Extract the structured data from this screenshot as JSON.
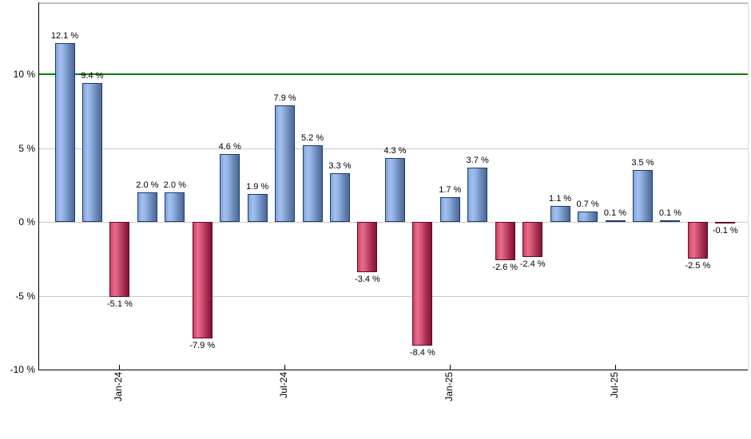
{
  "chart_data": {
    "type": "bar",
    "title": "",
    "unit": "%",
    "values": [
      12.1,
      9.4,
      -5.1,
      2.0,
      2.0,
      -7.9,
      4.6,
      1.9,
      7.9,
      5.2,
      3.3,
      -3.4,
      4.3,
      -8.4,
      1.7,
      3.7,
      -2.6,
      -2.4,
      1.1,
      0.7,
      0.1,
      3.5,
      0.1,
      -2.5,
      -0.1
    ],
    "point_labels": [
      "12.1 %",
      "9.4 %",
      "-5.1 %",
      "2.0 %",
      "2.0 %",
      "-7.9 %",
      "4.6 %",
      "1.9 %",
      "7.9 %",
      "5.2 %",
      "3.3 %",
      "-3.4 %",
      "4.3 %",
      "-8.4 %",
      "1.7 %",
      "3.7 %",
      "-2.6 %",
      "-2.4 %",
      "1.1 %",
      "0.7 %",
      "0.1 %",
      "3.5 %",
      "0.1 %",
      "-2.5 %",
      "-0.1 %"
    ],
    "x_ticks": [
      {
        "label": "Jan-24",
        "bar_index": 2
      },
      {
        "label": "Jul-24",
        "bar_index": 8
      },
      {
        "label": "Jan-25",
        "bar_index": 14
      },
      {
        "label": "Jul-25",
        "bar_index": 20
      }
    ],
    "y_ticks": [
      {
        "label": "10 %",
        "value": 10
      },
      {
        "label": "5 %",
        "value": 5
      },
      {
        "label": "0 %",
        "value": 0
      },
      {
        "label": "-5 %",
        "value": -5
      },
      {
        "label": "-10 %",
        "value": -10
      }
    ],
    "ylim": [
      -10,
      14.8
    ],
    "grid": true,
    "legend": false,
    "threshold_line": {
      "value": 10,
      "color": "#008000"
    },
    "colors": {
      "positive_bar": "#7fa1d8",
      "positive_bar_border": "#1c3c6e",
      "negative_bar": "#d63e64",
      "negative_bar_border": "#600c24",
      "gridline": "#c9c9c9",
      "axis": "#000000",
      "threshold": "#008000",
      "plot_top_border": "#c0c0c0",
      "background": "#ffffff",
      "label_text": "#000000"
    }
  }
}
